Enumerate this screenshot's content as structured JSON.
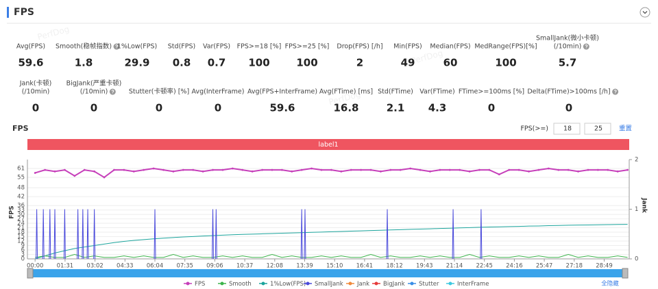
{
  "header": {
    "title": "FPS"
  },
  "watermark": "PerfDog",
  "stats": [
    [
      {
        "label": [
          "Avg(FPS)"
        ],
        "value": 59.6
      },
      {
        "label": [
          "Smooth(稳帧指数)"
        ],
        "value": 1.8,
        "help": true
      },
      {
        "label": [
          "1%Low(FPS)"
        ],
        "value": 29.9
      },
      {
        "label": [
          "Std(FPS)"
        ],
        "value": 0.8
      },
      {
        "label": [
          "Var(FPS)"
        ],
        "value": 0.7
      },
      {
        "label": [
          "FPS>=18 [%]"
        ],
        "value": 100
      },
      {
        "label": [
          "FPS>=25 [%]"
        ],
        "value": 100
      },
      {
        "label": [
          "Drop(FPS) [/h]"
        ],
        "value": 2
      },
      {
        "label": [
          "Min(FPS)"
        ],
        "value": 49
      },
      {
        "label": [
          "Median(FPS)"
        ],
        "value": 60
      },
      {
        "label": [
          "MedRange(FPS)[%]"
        ],
        "value": 100
      },
      {
        "label": [
          "SmallJank(微小卡顿)",
          "(/10min)"
        ],
        "value": 5.7,
        "help": true
      }
    ],
    [
      {
        "label": [
          "Jank(卡顿)",
          "(/10min)"
        ],
        "value": 0
      },
      {
        "label": [
          "BigJank(严重卡顿)",
          "(/10min)"
        ],
        "value": 0,
        "help": true
      },
      {
        "label": [
          "Stutter(卡顿率) [%]"
        ],
        "value": 0
      },
      {
        "label": [
          "Avg(InterFrame)"
        ],
        "value": 0
      },
      {
        "label": [
          "Avg(FPS+InterFrame)"
        ],
        "value": 59.6
      },
      {
        "label": [
          "Avg(FTime) [ms]"
        ],
        "value": 16.8
      },
      {
        "label": [
          "Std(FTime)"
        ],
        "value": 2.1
      },
      {
        "label": [
          "Var(FTime)"
        ],
        "value": 4.3
      },
      {
        "label": [
          "FTime>=100ms [%]"
        ],
        "value": 0
      },
      {
        "label": [
          "Delta(FTime)>100ms [/h]"
        ],
        "value": 0,
        "help": true
      }
    ]
  ],
  "controls": {
    "label": "FPS(>=)",
    "inputs": [
      18,
      25
    ],
    "reset": "重置"
  },
  "chart_data": {
    "type": "line",
    "title": "FPS",
    "band_label": "label1",
    "ylabel": "FPS",
    "y2label": "Jank",
    "legend_toggle": "全隐藏",
    "grid": true,
    "xlim": [
      -15,
      1805
    ],
    "xticks": [
      {
        "value": 0,
        "label": "00:00"
      },
      {
        "value": 91,
        "label": "01:31"
      },
      {
        "value": 182,
        "label": "03:02"
      },
      {
        "value": 273,
        "label": "04:33"
      },
      {
        "value": 364,
        "label": "06:04"
      },
      {
        "value": 455,
        "label": "07:35"
      },
      {
        "value": 546,
        "label": "09:06"
      },
      {
        "value": 637,
        "label": "10:37"
      },
      {
        "value": 728,
        "label": "12:08"
      },
      {
        "value": 819,
        "label": "13:39"
      },
      {
        "value": 910,
        "label": "15:10"
      },
      {
        "value": 1001,
        "label": "16:41"
      },
      {
        "value": 1092,
        "label": "18:12"
      },
      {
        "value": 1183,
        "label": "19:43"
      },
      {
        "value": 1274,
        "label": "21:14"
      },
      {
        "value": 1365,
        "label": "22:45"
      },
      {
        "value": 1456,
        "label": "24:16"
      },
      {
        "value": 1547,
        "label": "25:47"
      },
      {
        "value": 1638,
        "label": "27:18"
      },
      {
        "value": 1729,
        "label": "28:49"
      }
    ],
    "ylim": [
      0,
      67
    ],
    "yticks": [
      0,
      3,
      6,
      9,
      12,
      15,
      18,
      21,
      24,
      27,
      30,
      33,
      36,
      42,
      48,
      55,
      61
    ],
    "y2lim": [
      0,
      2
    ],
    "y2ticks": [
      0,
      1,
      2
    ],
    "x": [
      0,
      30,
      60,
      90,
      120,
      150,
      180,
      210,
      240,
      270,
      300,
      330,
      360,
      390,
      420,
      450,
      480,
      510,
      540,
      570,
      600,
      630,
      660,
      690,
      720,
      750,
      780,
      810,
      840,
      870,
      900,
      930,
      960,
      990,
      1020,
      1050,
      1080,
      1110,
      1140,
      1170,
      1200,
      1230,
      1260,
      1290,
      1320,
      1350,
      1380,
      1410,
      1440,
      1470,
      1500,
      1530,
      1560,
      1590,
      1620,
      1650,
      1680,
      1710,
      1740,
      1770,
      1800
    ],
    "series": [
      {
        "name": "FPS",
        "color": "#c63fba",
        "values": [
          58,
          60,
          59,
          60,
          56,
          60,
          59,
          55,
          60,
          60,
          59,
          60,
          61,
          60,
          59,
          60,
          60,
          59,
          60,
          60,
          61,
          60,
          59,
          60,
          60,
          60,
          59,
          60,
          61,
          60,
          60,
          59,
          60,
          60,
          60,
          59,
          60,
          60,
          61,
          60,
          59,
          60,
          60,
          60,
          59,
          60,
          60,
          57,
          60,
          60,
          59,
          60,
          61,
          60,
          60,
          59,
          60,
          60,
          60,
          59,
          60
        ]
      },
      {
        "name": "Smooth",
        "color": "#3cb44b",
        "values": [
          1,
          2,
          1,
          1,
          3,
          1,
          2,
          1,
          1,
          2,
          1,
          2,
          1,
          1,
          3,
          1,
          2,
          1,
          1,
          2,
          1,
          2,
          1,
          1,
          3,
          1,
          2,
          1,
          1,
          2,
          1,
          2,
          1,
          1,
          3,
          1,
          2,
          1,
          1,
          2,
          1,
          2,
          1,
          1,
          3,
          1,
          2,
          1,
          1,
          2,
          1,
          2,
          1,
          1,
          3,
          1,
          2,
          1,
          1,
          2,
          1
        ]
      },
      {
        "name": "1%Low(FPS)",
        "color": "#1ba49c",
        "values": [
          0,
          2,
          4,
          5.5,
          7,
          8,
          9,
          10,
          11,
          11.8,
          12.5,
          13,
          13.5,
          14,
          14.4,
          14.8,
          15.1,
          15.4,
          15.7,
          16,
          16.3,
          16.5,
          16.7,
          16.9,
          17.1,
          17.3,
          17.5,
          17.7,
          17.9,
          18.1,
          18.3,
          18.5,
          18.7,
          18.9,
          19.1,
          19.3,
          19.5,
          19.7,
          19.9,
          20.1,
          20.3,
          20.5,
          20.7,
          20.9,
          21.1,
          21.3,
          21.5,
          21.6,
          21.8,
          21.9,
          22.1,
          22.2,
          22.4,
          22.5,
          22.7,
          22.8,
          22.9,
          23,
          23.1,
          23.2,
          23.3
        ]
      },
      {
        "name": "SmallJank",
        "color": "#4a4adb",
        "axis": "y2",
        "style": "spike",
        "x": [
          5,
          25,
          45,
          60,
          90,
          130,
          145,
          160,
          180,
          364,
          540,
          550,
          810,
          820,
          1070,
          1270,
          1355
        ],
        "values": [
          1,
          1,
          1,
          1,
          1,
          1,
          1,
          1,
          1,
          1,
          1,
          1,
          1,
          1,
          1,
          1,
          1
        ]
      },
      {
        "name": "Jank",
        "color": "#f08a3c"
      },
      {
        "name": "BigJank",
        "color": "#e63b3b"
      },
      {
        "name": "Stutter",
        "color": "#3a8ee6"
      },
      {
        "name": "InterFrame",
        "color": "#3cc8e0"
      }
    ]
  }
}
